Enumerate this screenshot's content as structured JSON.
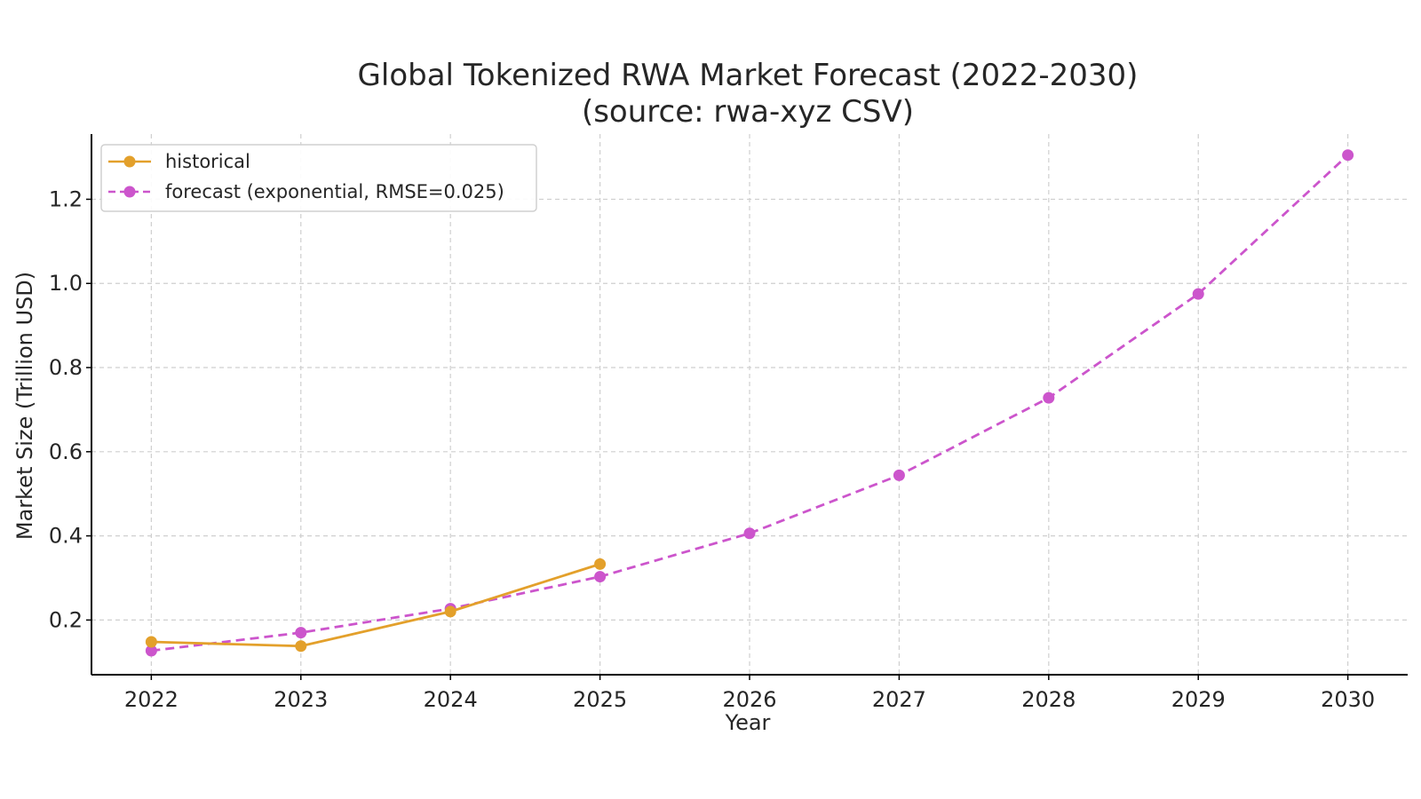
{
  "chart_data": {
    "type": "line",
    "title": "Global Tokenized RWA Market Forecast (2022-2030)",
    "subtitle": "(source: rwa-xyz CSV)",
    "xlabel": "Year",
    "ylabel": "Market Size (Trillion USD)",
    "x": [
      2022,
      2023,
      2024,
      2025,
      2026,
      2027,
      2028,
      2029,
      2030
    ],
    "x_tick_labels": [
      "2022",
      "2023",
      "2024",
      "2025",
      "2026",
      "2027",
      "2028",
      "2029",
      "2030"
    ],
    "y_ticks": [
      0.2,
      0.4,
      0.6,
      0.8,
      1.0,
      1.2
    ],
    "y_tick_labels": [
      "0.2",
      "0.4",
      "0.6",
      "0.8",
      "1.0",
      "1.2"
    ],
    "xlim": [
      2021.6,
      2030.4
    ],
    "ylim": [
      0.07,
      1.355
    ],
    "grid": true,
    "legend_position": "top-left",
    "series": [
      {
        "name": "historical",
        "color": "#e3a02b",
        "style": "solid",
        "marker": "circle",
        "x": [
          2022,
          2023,
          2024,
          2025
        ],
        "values": [
          0.148,
          0.138,
          0.22,
          0.333
        ]
      },
      {
        "name": "forecast (exponential, RMSE=0.025)",
        "color": "#cc55cc",
        "style": "dashed",
        "marker": "circle",
        "x": [
          2022,
          2023,
          2024,
          2025,
          2026,
          2027,
          2028,
          2029,
          2030
        ],
        "values": [
          0.127,
          0.17,
          0.227,
          0.303,
          0.406,
          0.544,
          0.728,
          0.975,
          1.305
        ]
      }
    ]
  }
}
